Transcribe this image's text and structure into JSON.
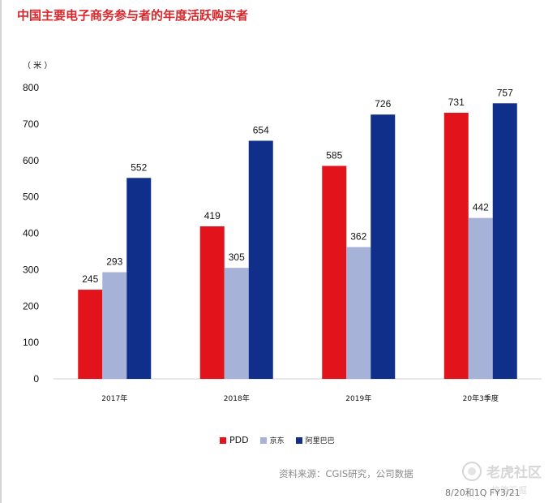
{
  "title": "中国主要电子商务参与者的年度活跃购买者",
  "chart_data": {
    "type": "bar",
    "ylabel": "（ 米 ）",
    "ylim": [
      0,
      800
    ],
    "yticks": [
      0,
      100,
      200,
      300,
      400,
      500,
      600,
      700,
      800
    ],
    "categories": [
      "2017年",
      "2018年",
      "2019年",
      "20年3季度"
    ],
    "series": [
      {
        "name": "PDD",
        "color": "#e3131b",
        "values": [
          245,
          419,
          585,
          731
        ]
      },
      {
        "name": "京东",
        "color": "#a7b2d9",
        "values": [
          293,
          305,
          362,
          442
        ]
      },
      {
        "name": "阿里巴巴",
        "color": "#0f2f8b",
        "values": [
          552,
          654,
          726,
          757
        ]
      }
    ],
    "legend_position": "bottom",
    "grid": false
  },
  "source": "资料来源：CGIS研究，公司数据",
  "footnote": "8/20和1Q FY3/21",
  "watermark": {
    "brand": "老虎社区",
    "sub": "格隆汇掘"
  }
}
